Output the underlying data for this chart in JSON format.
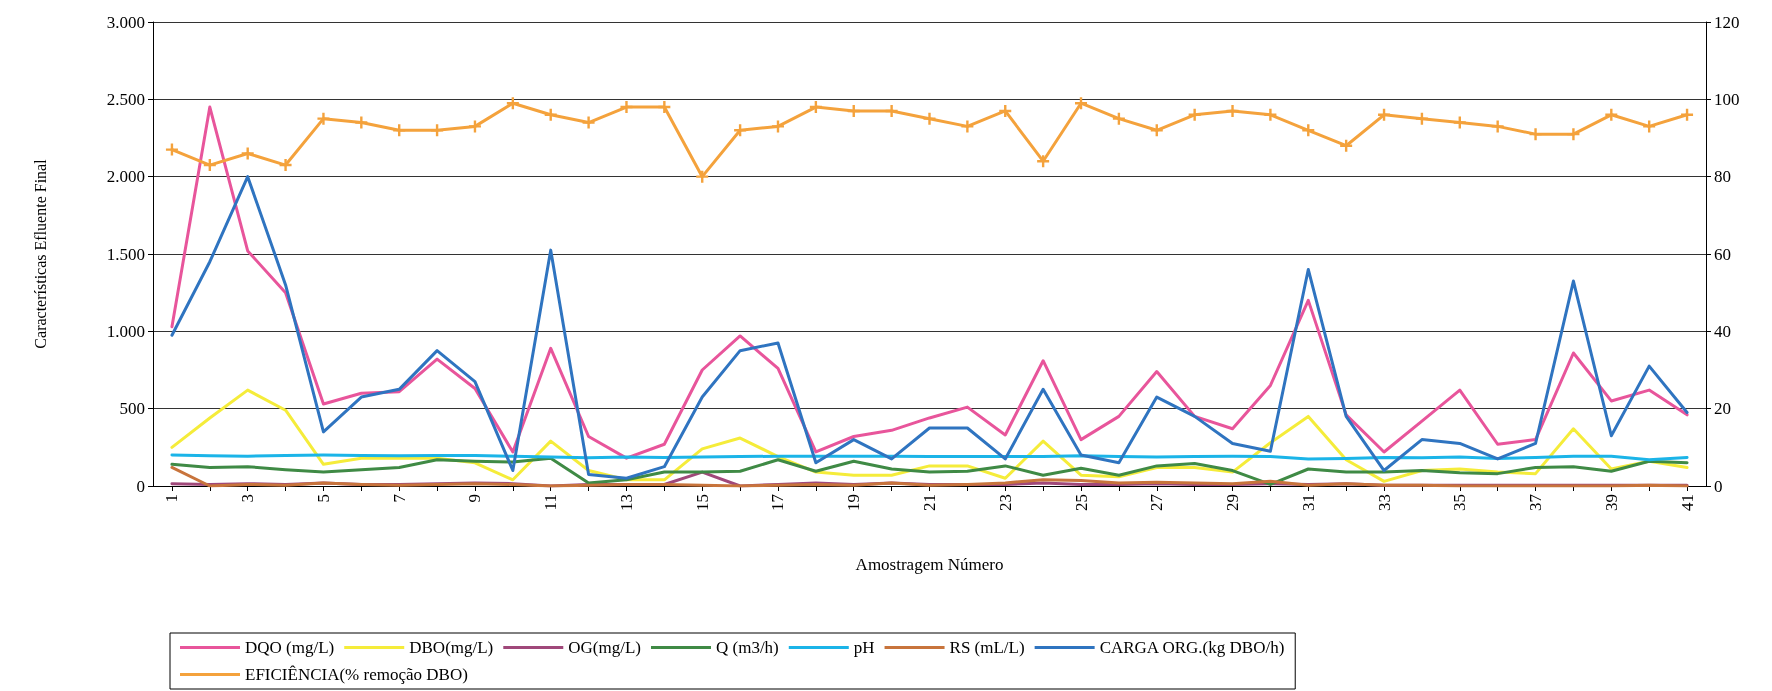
{
  "chart_data": {
    "type": "line",
    "xlabel": "Amostragem Número",
    "ylabel": "Características Efluente Final",
    "categories": [
      "1",
      null,
      "3",
      null,
      "5",
      null,
      "7",
      null,
      "9",
      null,
      "11",
      null,
      "13",
      null,
      "15",
      null,
      "17",
      null,
      "19",
      null,
      "21",
      null,
      "23",
      null,
      "25",
      null,
      "27",
      null,
      "29",
      null,
      "31",
      null,
      "33",
      null,
      "35",
      null,
      "37",
      null,
      "39",
      null,
      "41"
    ],
    "ylim": [
      0,
      3000
    ],
    "yticks": [
      0,
      500,
      {
        "value": 1000,
        "label": "1.000"
      },
      {
        "value": 1500,
        "label": "1.500"
      },
      {
        "value": 2000,
        "label": "2.000"
      },
      {
        "value": 2500,
        "label": "2.500"
      },
      {
        "value": 3000,
        "label": "3.000"
      }
    ],
    "y2lim": [
      0,
      120
    ],
    "y2ticks": [
      0,
      20,
      40,
      60,
      80,
      100,
      120
    ],
    "grid": "y",
    "legend": "bottom",
    "marker": "none",
    "line_style": "solid",
    "series": [
      {
        "name": "DQO (mg/L)",
        "color": "#e8559b",
        "values": [
          1030,
          2450,
          1520,
          1250,
          530,
          600,
          610,
          820,
          630,
          220,
          890,
          320,
          180,
          270,
          750,
          970,
          760,
          220,
          320,
          360,
          440,
          510,
          330,
          810,
          300,
          450,
          740,
          450,
          370,
          650,
          1200,
          460,
          220,
          420,
          620,
          270,
          300,
          860,
          550,
          620,
          460
        ]
      },
      {
        "name": "DBO(mg/L)",
        "color": "#f5ec3a",
        "values": [
          250,
          440,
          620,
          490,
          140,
          180,
          180,
          180,
          150,
          40,
          290,
          100,
          40,
          40,
          240,
          310,
          190,
          90,
          70,
          70,
          130,
          130,
          50,
          290,
          70,
          60,
          120,
          120,
          90,
          280,
          450,
          170,
          30,
          100,
          110,
          90,
          80,
          370,
          110,
          160,
          120
        ]
      },
      {
        "name": "OG(mg/L)",
        "color": "#a0487a",
        "values": [
          15,
          10,
          15,
          10,
          20,
          10,
          10,
          15,
          20,
          15,
          0,
          10,
          10,
          10,
          90,
          0,
          10,
          20,
          10,
          20,
          10,
          10,
          10,
          20,
          10,
          10,
          15,
          10,
          10,
          15,
          10,
          15,
          5,
          5,
          5,
          5,
          5,
          5,
          5,
          5,
          5
        ]
      },
      {
        "name": "Q (m3/h)",
        "color": "#3f8a45",
        "values": [
          140,
          120,
          125,
          105,
          90,
          105,
          120,
          170,
          160,
          155,
          180,
          20,
          40,
          90,
          90,
          95,
          170,
          95,
          160,
          110,
          90,
          95,
          130,
          70,
          115,
          70,
          130,
          145,
          100,
          10,
          110,
          90,
          90,
          100,
          85,
          80,
          120,
          125,
          95,
          160,
          150
        ]
      },
      {
        "name": "pH",
        "color": "#1bb4e8",
        "axis": "y2",
        "values": [
          8,
          7.8,
          7.7,
          7.9,
          8,
          7.9,
          7.8,
          7.9,
          7.9,
          7.7,
          7.5,
          7.3,
          7.5,
          7.4,
          7.5,
          7.6,
          7.7,
          7.7,
          7.7,
          7.7,
          7.6,
          7.6,
          7.6,
          7.6,
          7.8,
          7.6,
          7.5,
          7.6,
          7.7,
          7.6,
          7,
          7.1,
          7.4,
          7.3,
          7.5,
          7.1,
          7.4,
          7.7,
          7.7,
          6.8,
          7.4
        ]
      },
      {
        "name": "RS (mL/L)",
        "color": "#c8743c",
        "values": [
          120,
          0,
          10,
          5,
          20,
          10,
          5,
          10,
          15,
          10,
          0,
          5,
          10,
          10,
          5,
          0,
          5,
          10,
          5,
          20,
          5,
          10,
          20,
          40,
          35,
          20,
          25,
          20,
          15,
          30,
          5,
          15,
          5,
          5,
          0,
          0,
          0,
          0,
          0,
          5,
          0
        ]
      },
      {
        "name": "CARGA ORG.(kg DBO/h)",
        "color": "#2f74c0",
        "axis": "y2",
        "values": [
          39,
          58,
          80,
          52,
          14,
          23,
          25,
          35,
          27,
          4,
          61,
          3,
          2,
          5,
          23,
          35,
          37,
          6,
          12,
          7,
          15,
          15,
          7,
          25,
          8,
          6,
          23,
          18,
          11,
          9,
          56,
          18,
          4,
          12,
          11,
          7,
          11,
          53,
          13,
          31,
          19
        ]
      },
      {
        "name": "EFICIÊNCIA(% remoção DBO)",
        "color": "#f4a23c",
        "axis": "y2",
        "marker": "cross",
        "values": [
          87,
          83,
          86,
          83,
          95,
          94,
          92,
          92,
          93,
          99,
          96,
          94,
          98,
          98,
          80,
          92,
          93,
          98,
          97,
          97,
          95,
          93,
          97,
          84,
          99,
          95,
          92,
          96,
          97,
          96,
          92,
          88,
          96,
          95,
          94,
          93,
          91,
          91,
          96,
          93,
          96
        ]
      }
    ]
  }
}
